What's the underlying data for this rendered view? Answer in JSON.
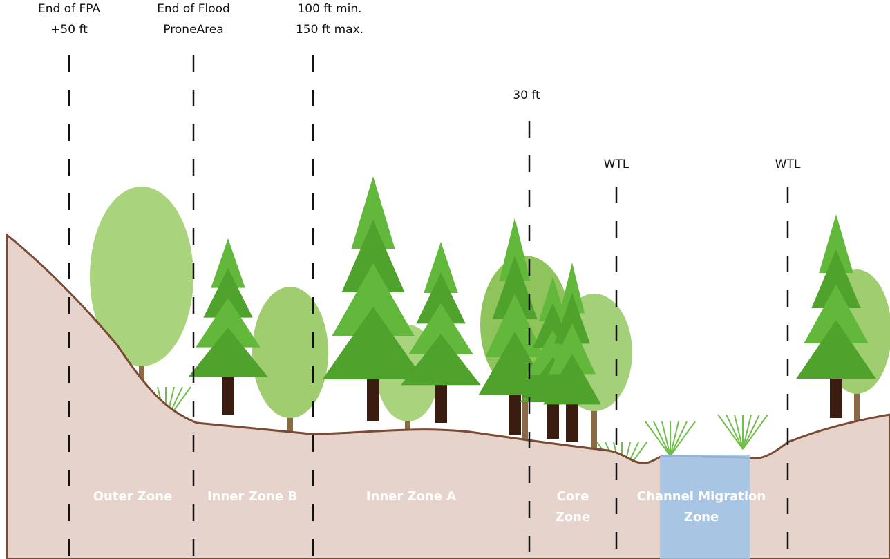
{
  "markers": [
    {
      "lines": [
        "End of FPA",
        "+50 ft"
      ]
    },
    {
      "lines": [
        "End of Flood",
        "ProneArea"
      ]
    },
    {
      "lines": [
        "100 ft min.",
        "150 ft max."
      ]
    },
    {
      "lines": [
        "30 ft"
      ]
    },
    {
      "lines": [
        "WTL"
      ]
    },
    {
      "lines": [
        "WTL"
      ]
    }
  ],
  "zones": [
    {
      "lines": [
        "Outer Zone"
      ]
    },
    {
      "lines": [
        "Inner Zone B"
      ]
    },
    {
      "lines": [
        "Inner Zone A"
      ]
    },
    {
      "lines": [
        "Core",
        "Zone"
      ]
    },
    {
      "lines": [
        "Channel Migration",
        "Zone"
      ]
    }
  ]
}
